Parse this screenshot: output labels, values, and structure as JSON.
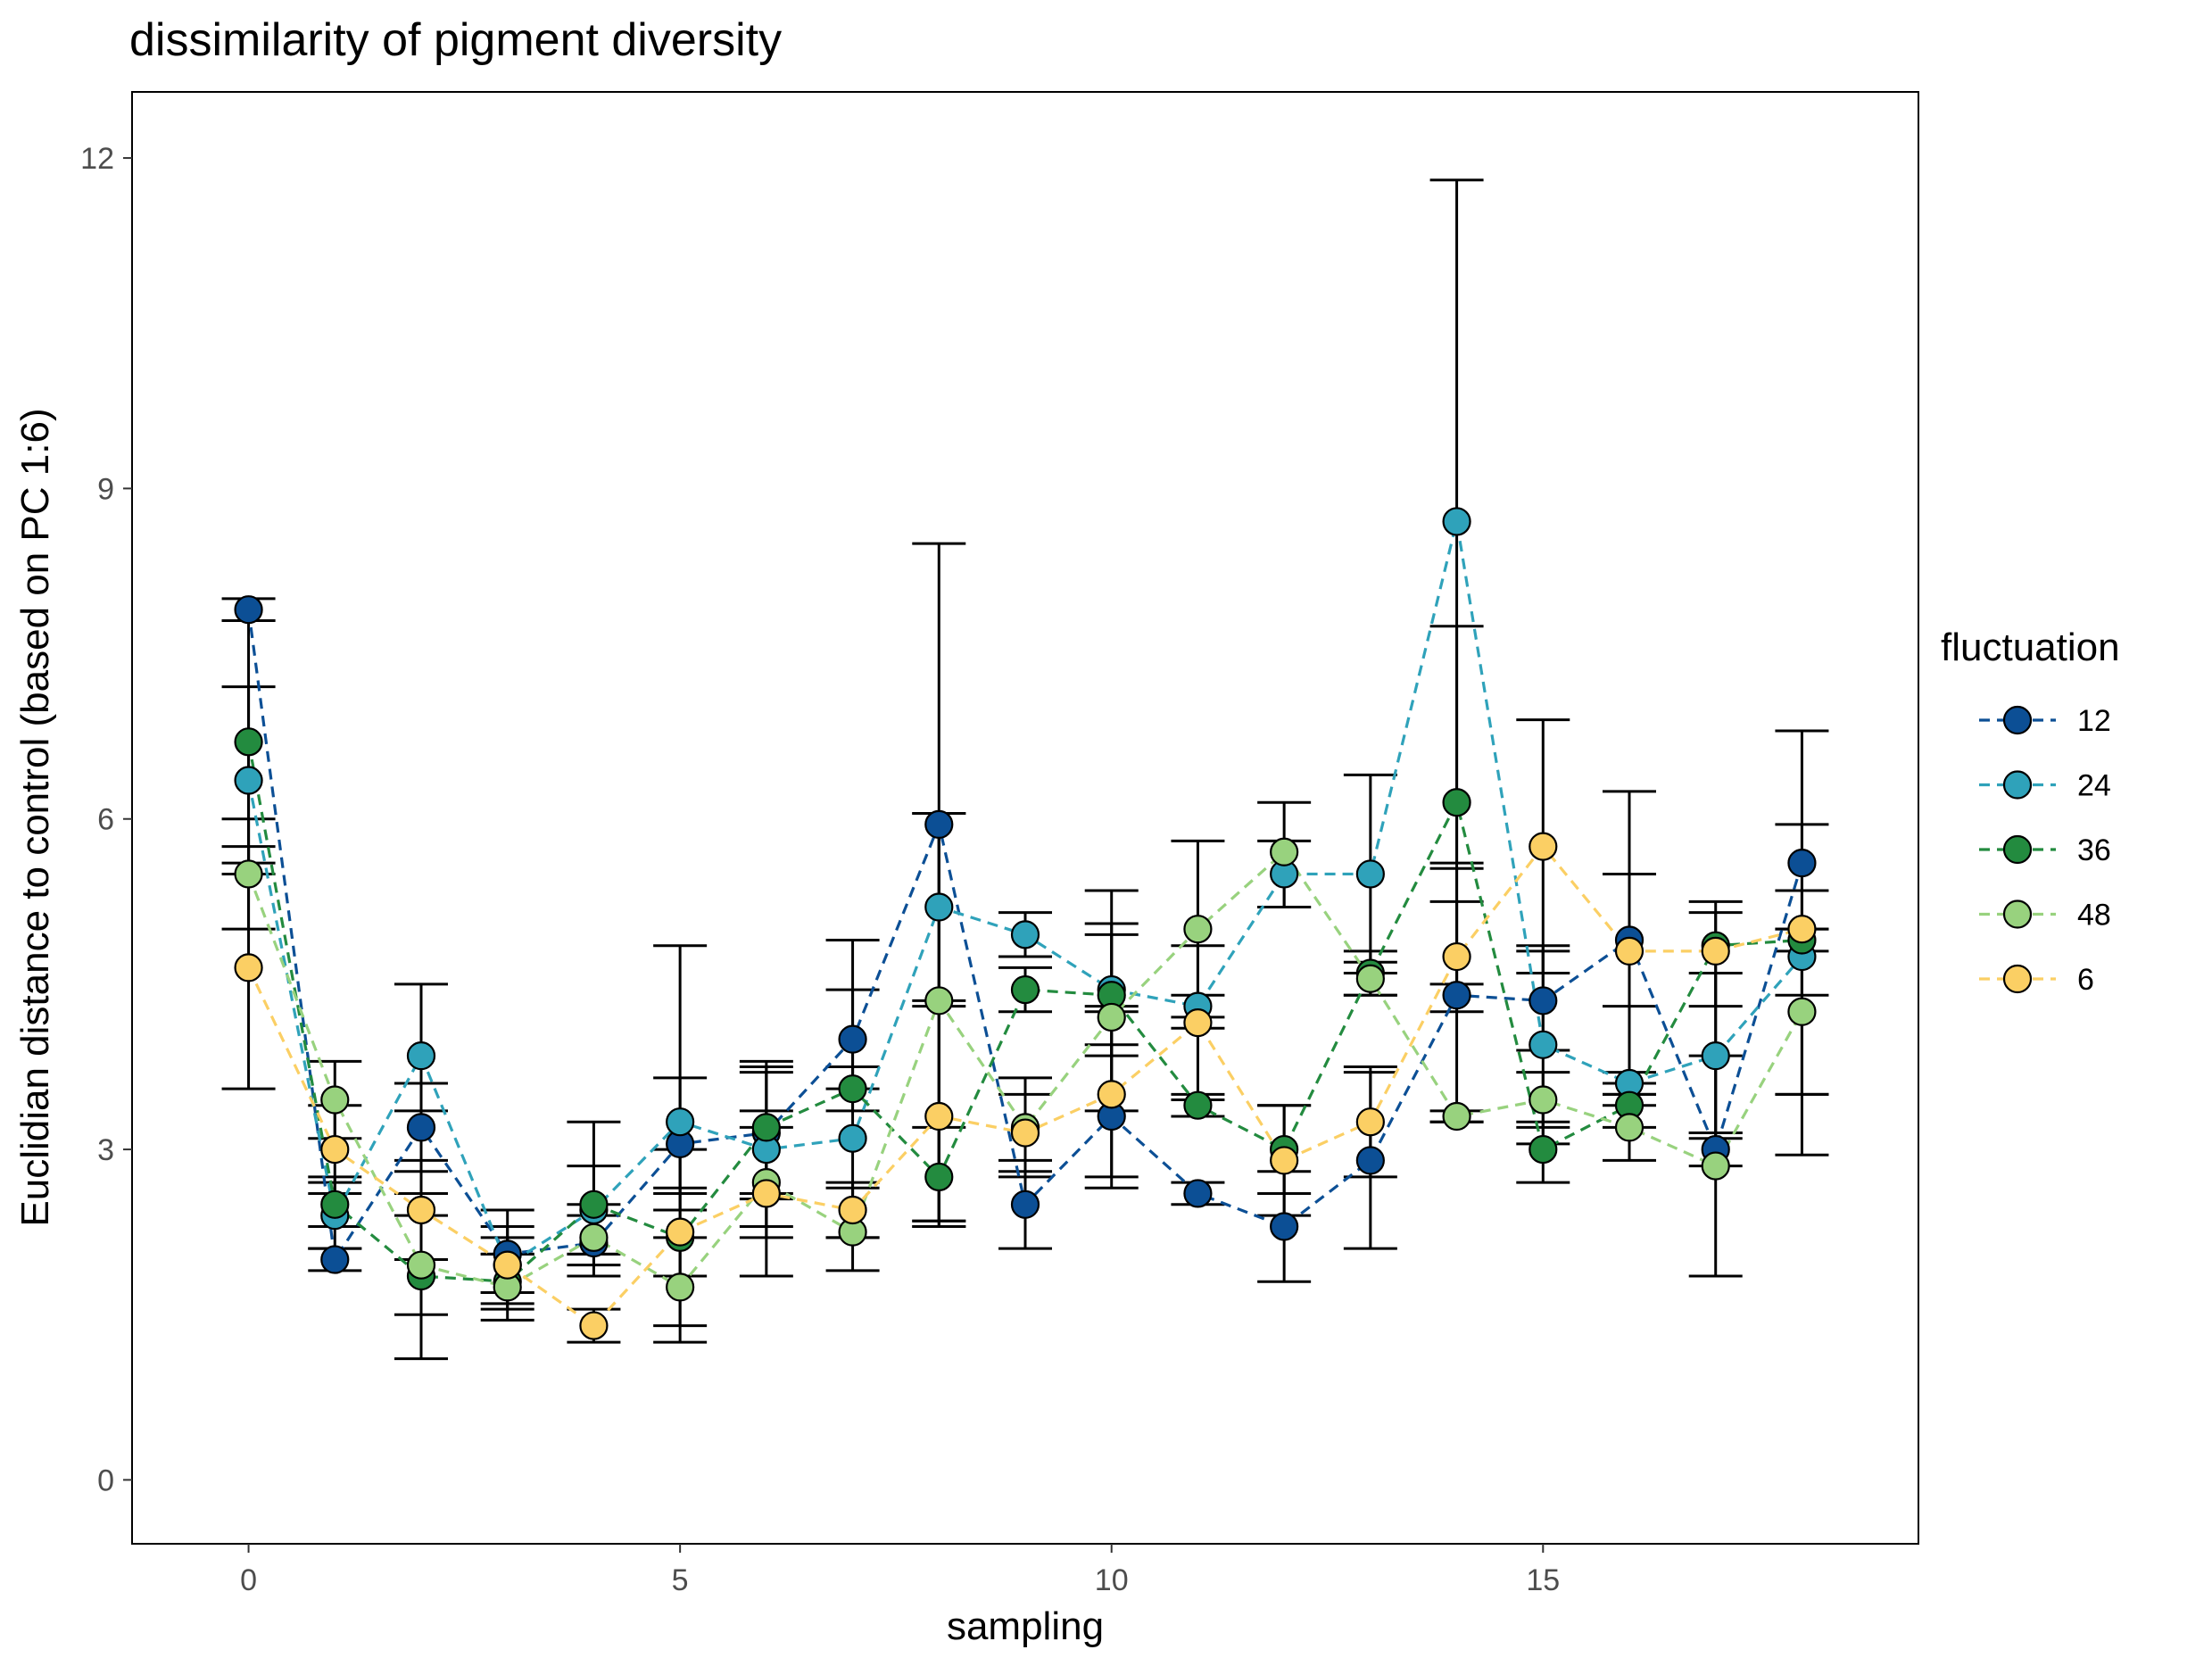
{
  "chart_data": {
    "type": "line",
    "title": "dissimilarity of pigment diversity",
    "xlabel": "sampling",
    "ylabel": "Euclidian distance to control (based on PC 1:6)",
    "xlim": [
      -1.35,
      19.35
    ],
    "ylim": [
      -0.58,
      12.6
    ],
    "x_ticks": [
      0,
      5,
      10,
      15
    ],
    "y_ticks": [
      0,
      3,
      6,
      9,
      12
    ],
    "grid": false,
    "legend_position": "right",
    "legend_title": "fluctuation",
    "x": [
      0,
      1,
      2,
      3,
      4,
      5,
      6,
      7,
      8,
      9,
      10,
      11,
      12,
      13,
      14,
      15,
      16,
      17,
      18
    ],
    "series": [
      {
        "name": "12",
        "color": "#0c4f95",
        "values": [
          7.9,
          2.0,
          3.2,
          2.05,
          2.15,
          3.05,
          3.15,
          4.0,
          5.95,
          2.5,
          3.3,
          2.6,
          2.3,
          2.9,
          4.4,
          4.35,
          4.9,
          3.0,
          5.6
        ],
        "lower": [
          7.8,
          1.9,
          2.8,
          1.7,
          1.95,
          2.45,
          2.55,
          3.55,
          2.35,
          2.1,
          2.65,
          2.5,
          1.8,
          2.1,
          3.25,
          3.9,
          4.3,
          2.85,
          4.4
        ],
        "upper": [
          8.0,
          2.1,
          3.6,
          2.45,
          2.4,
          3.65,
          3.75,
          4.45,
          8.5,
          2.9,
          3.95,
          2.7,
          2.8,
          3.7,
          5.55,
          4.8,
          5.5,
          3.15,
          6.8
        ]
      },
      {
        "name": "24",
        "color": "#2fa2ba",
        "values": [
          6.35,
          2.4,
          3.85,
          1.95,
          2.45,
          3.25,
          3.0,
          3.1,
          5.2,
          4.95,
          4.45,
          4.3,
          5.5,
          5.5,
          8.7,
          3.95,
          3.6,
          3.85,
          4.75
        ],
        "lower": [
          5.5,
          2.1,
          3.35,
          1.6,
          2.05,
          2.6,
          2.3,
          2.2,
          4.35,
          4.75,
          4.3,
          4.2,
          5.2,
          4.6,
          5.6,
          3.05,
          3.5,
          3.1,
          3.5
        ],
        "upper": [
          7.2,
          2.7,
          4.5,
          2.3,
          2.85,
          4.85,
          3.7,
          4.9,
          6.05,
          5.15,
          5.35,
          4.4,
          5.8,
          6.4,
          11.8,
          4.85,
          3.7,
          4.6,
          5.95
        ]
      },
      {
        "name": "36",
        "color": "#238b3f",
        "values": [
          6.7,
          2.5,
          1.85,
          1.8,
          2.5,
          2.2,
          3.2,
          3.55,
          2.75,
          4.45,
          4.4,
          3.4,
          3.0,
          4.6,
          6.15,
          3.0,
          3.4,
          4.85,
          4.9
        ],
        "lower": [
          5.6,
          2.3,
          1.1,
          1.55,
          2.05,
          1.4,
          2.6,
          3.35,
          2.3,
          4.25,
          3.85,
          3.3,
          2.6,
          4.4,
          4.5,
          2.7,
          3.2,
          4.3,
          4.8
        ],
        "upper": [
          7.8,
          2.75,
          2.6,
          2.05,
          3.25,
          3.0,
          3.8,
          3.75,
          3.2,
          4.65,
          4.95,
          3.5,
          3.4,
          4.8,
          7.75,
          3.25,
          3.6,
          5.25,
          5.0
        ]
      },
      {
        "name": "48",
        "color": "#98d27e",
        "values": [
          5.5,
          3.45,
          1.95,
          1.75,
          2.2,
          1.75,
          2.7,
          2.25,
          4.35,
          3.2,
          4.2,
          5.0,
          5.7,
          4.55,
          3.3,
          3.45,
          3.2,
          2.85,
          4.25
        ],
        "lower": [
          5.0,
          3.1,
          1.5,
          1.45,
          1.85,
          1.25,
          2.2,
          1.9,
          2.35,
          2.75,
          3.35,
          4.1,
          5.2,
          4.4,
          3.25,
          3.2,
          2.9,
          1.85,
          3.5
        ],
        "upper": [
          6.0,
          3.8,
          2.4,
          2.05,
          2.5,
          2.2,
          3.2,
          2.65,
          6.05,
          3.65,
          5.05,
          5.8,
          6.15,
          4.7,
          3.35,
          3.7,
          3.5,
          3.85,
          5.0
        ]
      },
      {
        "name": "6",
        "color": "#fbcf64",
        "values": [
          4.65,
          3.0,
          2.45,
          1.95,
          1.4,
          2.25,
          2.6,
          2.45,
          3.3,
          3.15,
          3.5,
          4.15,
          2.9,
          3.25,
          4.75,
          5.75,
          4.8,
          4.8,
          5.0
        ],
        "lower": [
          3.55,
          2.6,
          2.0,
          1.7,
          1.25,
          1.85,
          1.85,
          2.2,
          2.3,
          2.8,
          2.75,
          3.45,
          2.4,
          2.75,
          4.25,
          4.6,
          3.4,
          3.15,
          2.95
        ],
        "upper": [
          5.75,
          3.4,
          2.9,
          2.2,
          1.55,
          2.65,
          3.35,
          2.7,
          4.3,
          3.5,
          4.25,
          4.85,
          3.4,
          3.75,
          5.25,
          6.9,
          6.25,
          5.15,
          5.35
        ]
      }
    ]
  }
}
